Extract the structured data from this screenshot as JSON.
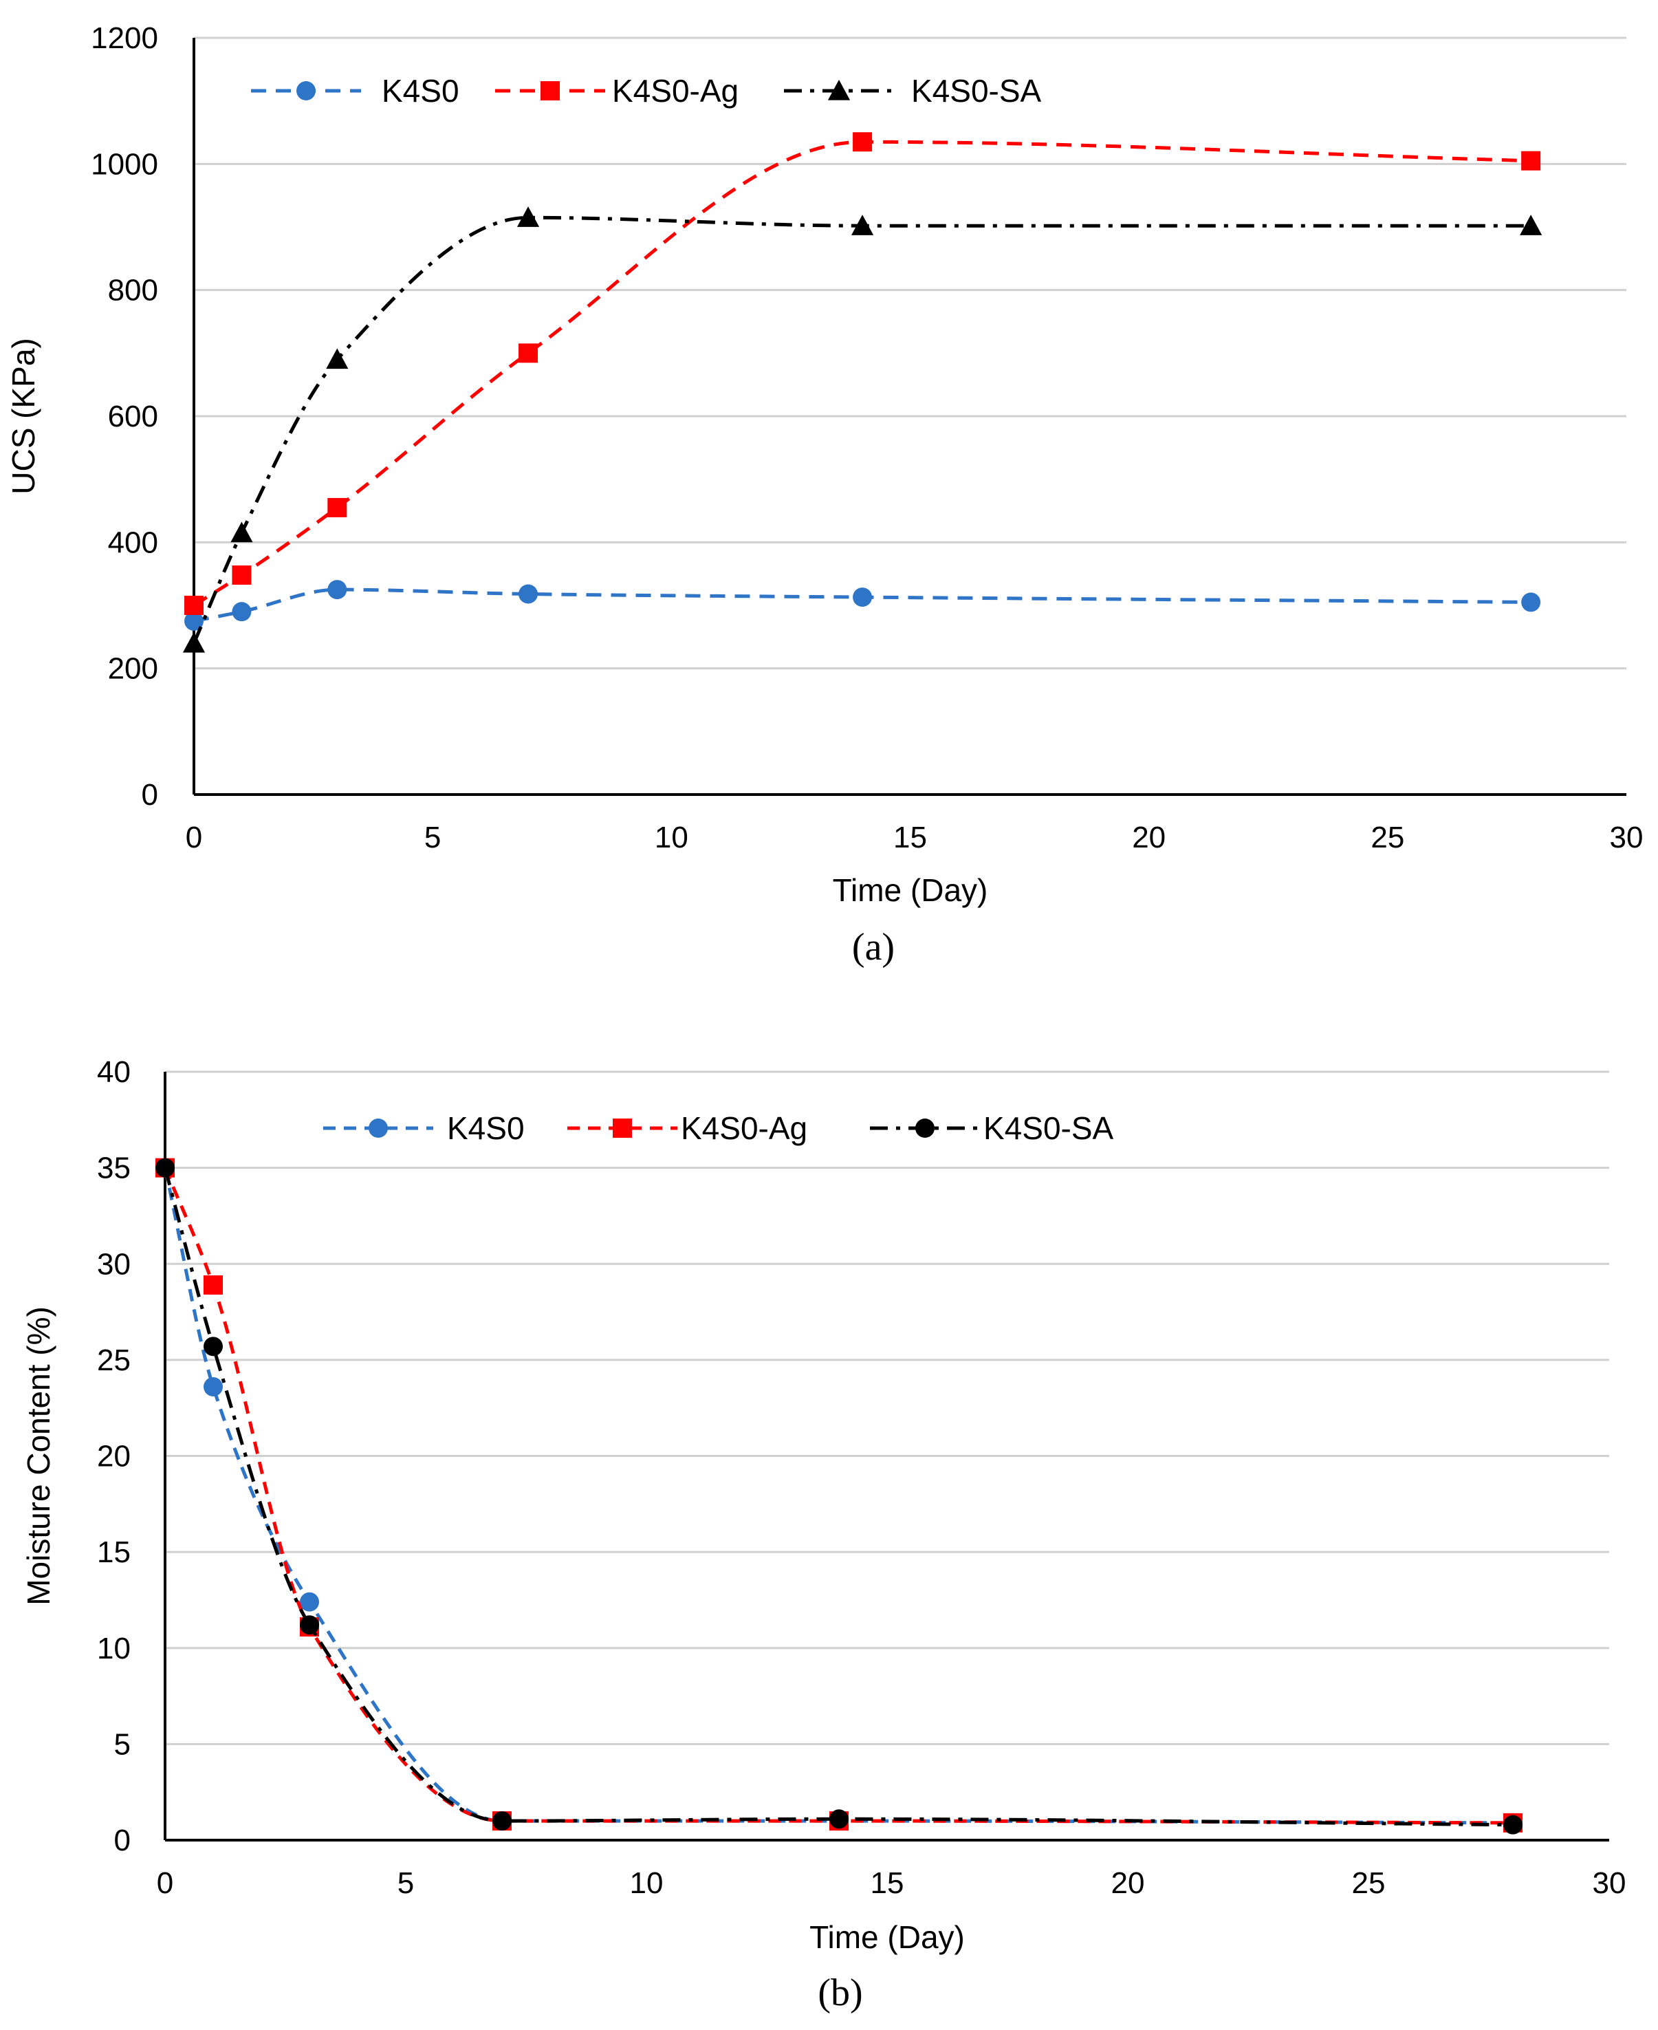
{
  "chart_data": [
    {
      "type": "line",
      "title": "",
      "caption": "(a)",
      "xlabel": "Time (Day)",
      "ylabel": "UCS (KPa)",
      "xlim": [
        0,
        30
      ],
      "ylim": [
        0,
        1200
      ],
      "xticks": [
        0,
        5,
        10,
        15,
        20,
        25,
        30
      ],
      "yticks": [
        0,
        200,
        400,
        600,
        800,
        1000,
        1200
      ],
      "grid": "horizontal",
      "legend_position": "top",
      "series": [
        {
          "name": "K4S0",
          "color": "#2e75c8",
          "marker": "circle",
          "line": "dashed",
          "x": [
            0,
            1,
            3,
            7,
            14,
            28
          ],
          "values": [
            275,
            290,
            325,
            318,
            313,
            305
          ]
        },
        {
          "name": "K4S0-Ag",
          "color": "#ff0000",
          "marker": "square",
          "line": "dashed",
          "x": [
            0,
            1,
            3,
            7,
            14,
            28
          ],
          "values": [
            300,
            348,
            455,
            700,
            1035,
            1005
          ]
        },
        {
          "name": "K4S0-SA",
          "color": "#000000",
          "marker": "triangle",
          "line": "dashdot",
          "x": [
            0,
            1,
            3,
            7,
            14,
            28
          ],
          "values": [
            240,
            415,
            690,
            915,
            902,
            902
          ]
        }
      ]
    },
    {
      "type": "line",
      "title": "",
      "caption": "(b)",
      "xlabel": "Time (Day)",
      "ylabel": "Moisture Content (%)",
      "xlim": [
        0,
        30
      ],
      "ylim": [
        0,
        40
      ],
      "xticks": [
        0,
        5,
        10,
        15,
        20,
        25,
        30
      ],
      "yticks": [
        0,
        5,
        10,
        15,
        20,
        25,
        30,
        35,
        40
      ],
      "grid": "horizontal",
      "legend_position": "top",
      "series": [
        {
          "name": "K4S0",
          "color": "#2e75c8",
          "marker": "circle",
          "line": "dashed",
          "x": [
            0,
            1,
            3,
            7,
            14,
            28
          ],
          "values": [
            35,
            23.6,
            12.4,
            1.0,
            1.0,
            0.9
          ]
        },
        {
          "name": "K4S0-Ag",
          "color": "#ff0000",
          "marker": "square",
          "line": "dashed",
          "x": [
            0,
            1,
            3,
            7,
            14,
            28
          ],
          "values": [
            35,
            28.9,
            11.1,
            1.0,
            1.0,
            0.9
          ]
        },
        {
          "name": "K4S0-SA",
          "color": "#000000",
          "marker": "circle",
          "line": "dashdot",
          "x": [
            0,
            1,
            3,
            7,
            14,
            28
          ],
          "values": [
            35,
            25.7,
            11.2,
            1.0,
            1.1,
            0.8
          ]
        }
      ]
    }
  ]
}
